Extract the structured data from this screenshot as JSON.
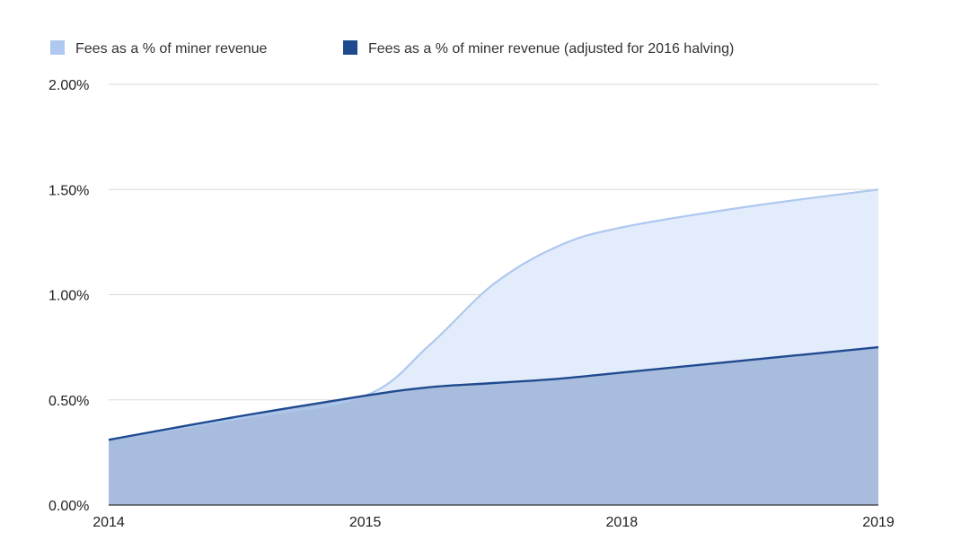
{
  "chart_data": {
    "type": "area",
    "title": "",
    "xlabel": "",
    "ylabel": "",
    "categories": [
      "2014",
      "2015",
      "2018",
      "2019"
    ],
    "x_positions": [
      0,
      1,
      2,
      3
    ],
    "ylim": [
      0,
      2.0
    ],
    "yticks": [
      0,
      0.5,
      1.0,
      1.5,
      2.0
    ],
    "ytick_labels": [
      "0.00%",
      "0.50%",
      "1.00%",
      "1.50%",
      "2.00%"
    ],
    "grid": true,
    "legend_position": "top-left",
    "series": [
      {
        "name": "Fees as a % of miner revenue",
        "color": "#aec8ef",
        "fill": "#e3ecfa",
        "x": [
          0,
          0.5,
          1.0,
          1.25,
          1.5,
          1.75,
          2.0,
          2.5,
          3.0
        ],
        "values": [
          0.31,
          0.41,
          0.52,
          0.76,
          1.05,
          1.23,
          1.32,
          1.42,
          1.5
        ]
      },
      {
        "name": "Fees as a % of miner revenue (adjusted for 2016 halving)",
        "color": "#1f4a8f",
        "fill": "#a8bcde",
        "x": [
          0,
          0.5,
          1.0,
          1.25,
          1.5,
          1.75,
          2.0,
          2.5,
          3.0
        ],
        "values": [
          0.31,
          0.42,
          0.52,
          0.56,
          0.58,
          0.6,
          0.63,
          0.69,
          0.75
        ]
      }
    ]
  }
}
